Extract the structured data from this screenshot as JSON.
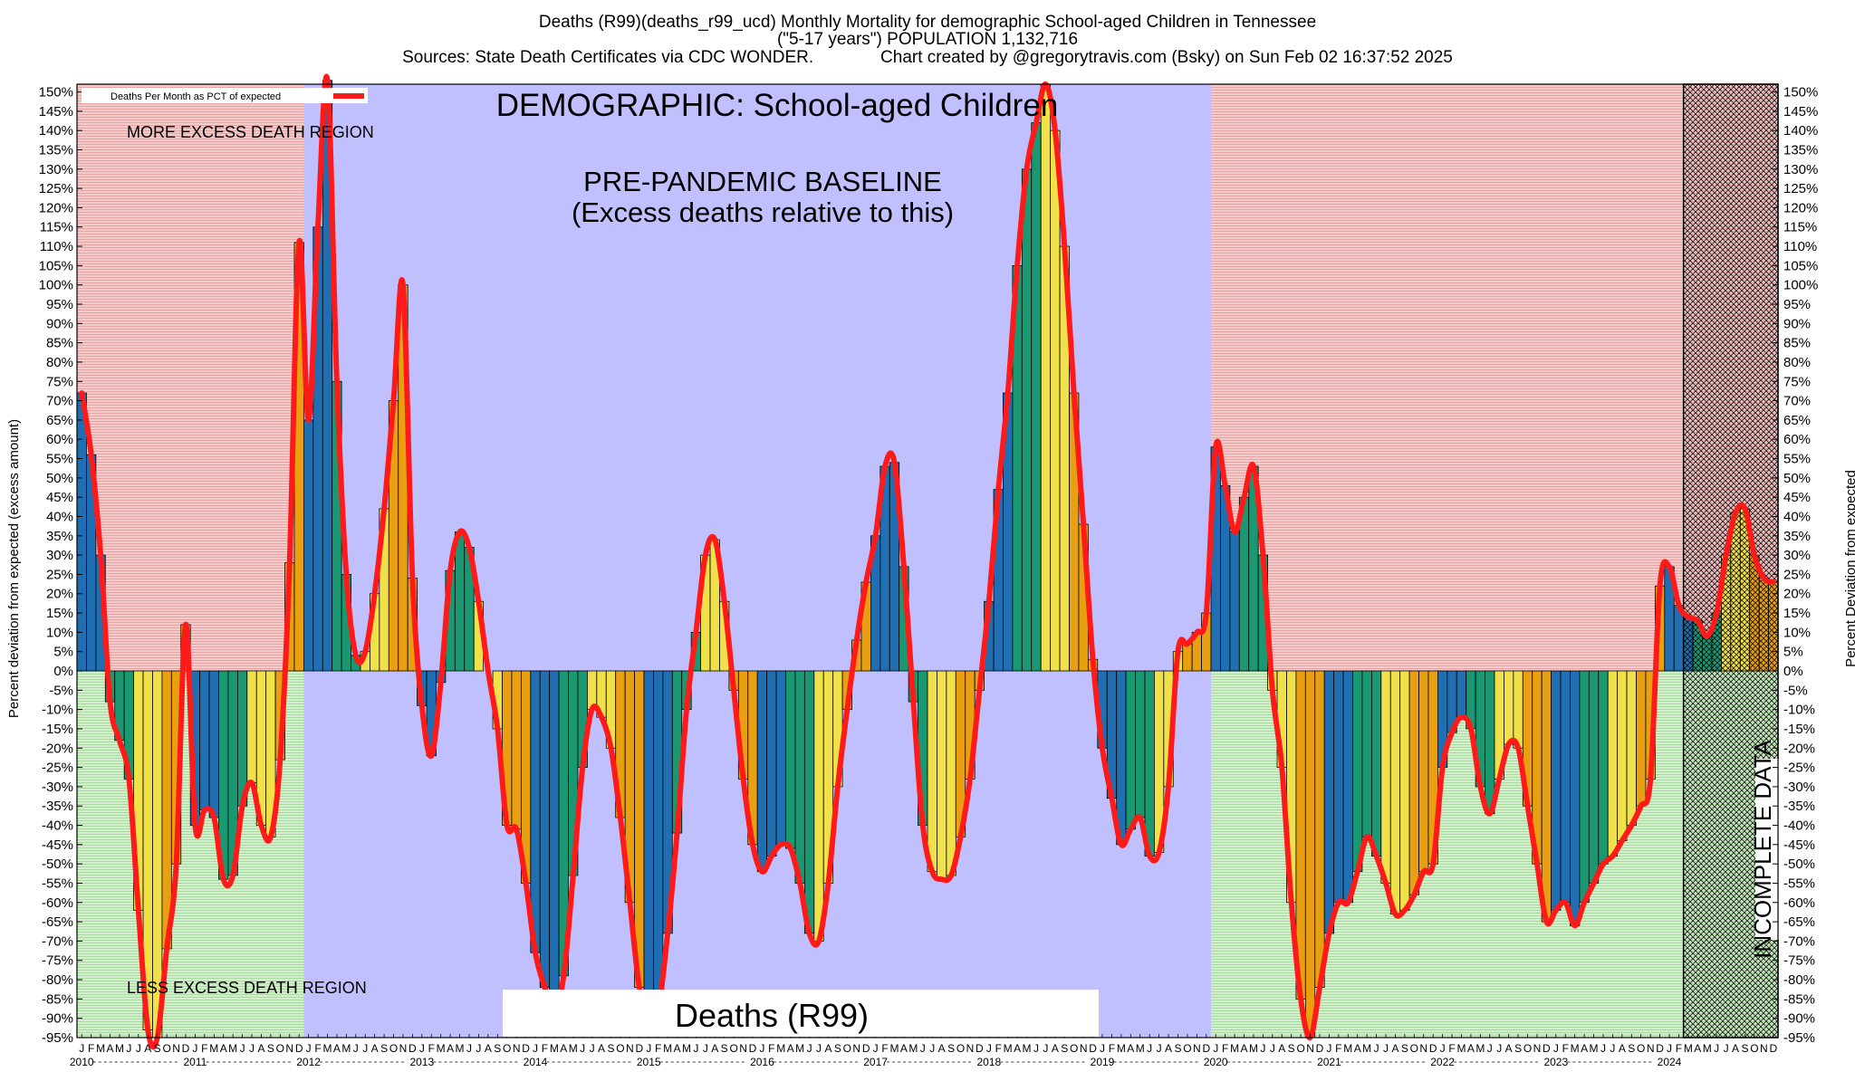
{
  "title_lines": [
    "Deaths (R99)(deaths_r99_ucd) Monthly Mortality for demographic School-aged Children in Tennessee",
    "(\"5-17 years\") POPULATION 1,132,716",
    "Sources: State Death Certificates via CDC WONDER.              Chart created by @gregorytravis.com (Bsky) on Sun Feb 02 16:37:52 2025"
  ],
  "legend_label": "Deaths Per Month as PCT of expected",
  "demographic_label": "DEMOGRAPHIC: School-aged Children",
  "baseline_label_1": "PRE-PANDEMIC BASELINE",
  "baseline_label_2": "(Excess deaths relative to this)",
  "more_region_label": "MORE EXCESS DEATH REGION",
  "less_region_label": "LESS EXCESS DEATH REGION",
  "cause_label": "Deaths (R99)",
  "incomplete_label": "INCOMPLETE DATA",
  "ylabel_left": "Percent deviation from expected (excess amount)",
  "ylabel_right": "Percent Deviation from expected",
  "colors": {
    "excess_bg": "#f2c4c4",
    "deficit_bg": "#cdeec6",
    "baseline_bg": "#c0c0ff",
    "line": "#ff1a1a",
    "bar_palette": [
      "#1f6fb2",
      "#1a9872",
      "#f0e04a",
      "#e8a012"
    ]
  },
  "chart_data": {
    "type": "bar",
    "x_start": "2010-01",
    "x_end": "2024-12",
    "month_letters": [
      "J",
      "F",
      "M",
      "A",
      "M",
      "J",
      "J",
      "A",
      "S",
      "O",
      "N",
      "D"
    ],
    "years": [
      "2010",
      "2011",
      "2012",
      "2013",
      "2014",
      "2015",
      "2016",
      "2017",
      "2018",
      "2019",
      "2020",
      "2021",
      "2022",
      "2023",
      "2024"
    ],
    "ylim": [
      -95,
      152
    ],
    "ytick_step": 5,
    "baseline_period": [
      "2012-01",
      "2019-12"
    ],
    "incomplete_period": [
      "2024-03",
      "2024-12"
    ],
    "series": [
      {
        "name": "Deaths Per Month as PCT of expected",
        "values": [
          72,
          56,
          30,
          -8,
          -18,
          -28,
          -62,
          -93,
          -95,
          -72,
          -50,
          12,
          -40,
          -36,
          -38,
          -54,
          -53,
          -35,
          -29,
          -40,
          -43,
          -23,
          28,
          111,
          65,
          115,
          153,
          75,
          25,
          4,
          5,
          20,
          42,
          70,
          100,
          24,
          -9,
          -22,
          -3,
          26,
          36,
          32,
          18,
          0,
          -15,
          -40,
          -41,
          -55,
          -73,
          -82,
          -88,
          -79,
          -53,
          -25,
          -10,
          -12,
          -20,
          -38,
          -60,
          -82,
          -92,
          -88,
          -68,
          -42,
          -10,
          10,
          30,
          34,
          18,
          -5,
          -28,
          -45,
          -52,
          -48,
          -45,
          -46,
          -55,
          -68,
          -70,
          -55,
          -30,
          -10,
          8,
          23,
          35,
          53,
          54,
          27,
          -8,
          -40,
          -52,
          -54,
          -53,
          -43,
          -28,
          -5,
          18,
          47,
          72,
          105,
          130,
          142,
          152,
          140,
          110,
          72,
          38,
          3,
          -20,
          -33,
          -45,
          -41,
          -38,
          -48,
          -47,
          -30,
          5,
          7,
          10,
          15,
          58,
          48,
          36,
          45,
          53,
          30,
          -5,
          -25,
          -60,
          -85,
          -95,
          -82,
          -68,
          -60,
          -60,
          -52,
          -43,
          -48,
          -55,
          -63,
          -62,
          -58,
          -52,
          -50,
          -25,
          -16,
          -12,
          -15,
          -30,
          -37,
          -28,
          -19,
          -20,
          -35,
          -50,
          -65,
          -62,
          -60,
          -66,
          -60,
          -55,
          -50,
          -48,
          -44,
          -40,
          -35,
          -28,
          22,
          27,
          17,
          14,
          13,
          9,
          15,
          30,
          41,
          42,
          30,
          24,
          23
        ]
      }
    ]
  }
}
